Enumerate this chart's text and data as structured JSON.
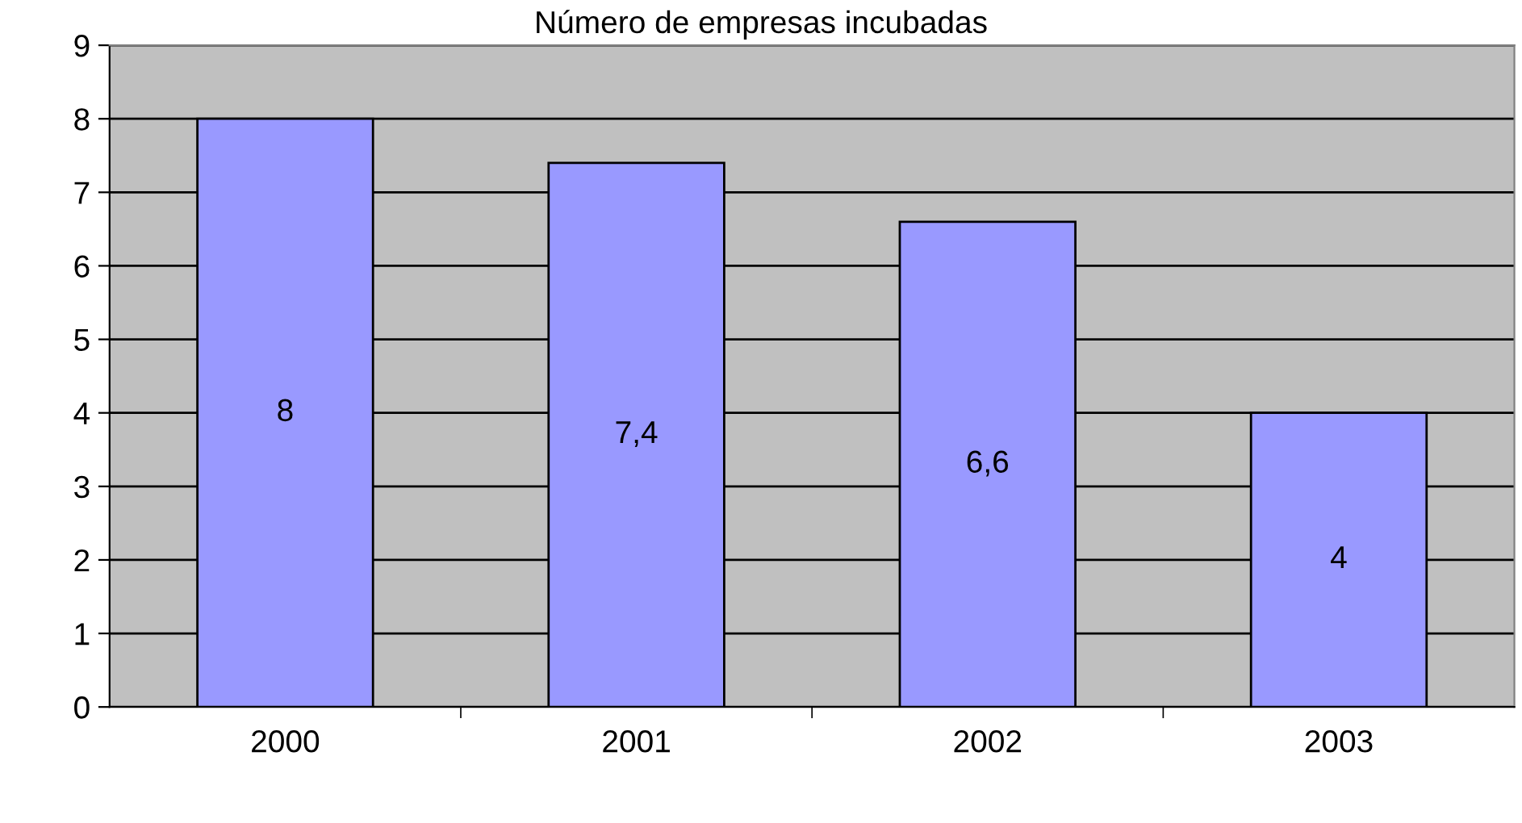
{
  "chart_data": {
    "type": "bar",
    "title": "Número de empresas incubadas",
    "categories": [
      "2000",
      "2001",
      "2002",
      "2003"
    ],
    "values": [
      8,
      7.4,
      6.6,
      4
    ],
    "value_labels": [
      "8",
      "7,4",
      "6,6",
      "4"
    ],
    "color": "#9999ff",
    "ylim": [
      0,
      9
    ],
    "yticks": [
      0,
      1,
      2,
      3,
      4,
      5,
      6,
      7,
      8,
      9
    ],
    "grid": "y",
    "legend": false
  }
}
